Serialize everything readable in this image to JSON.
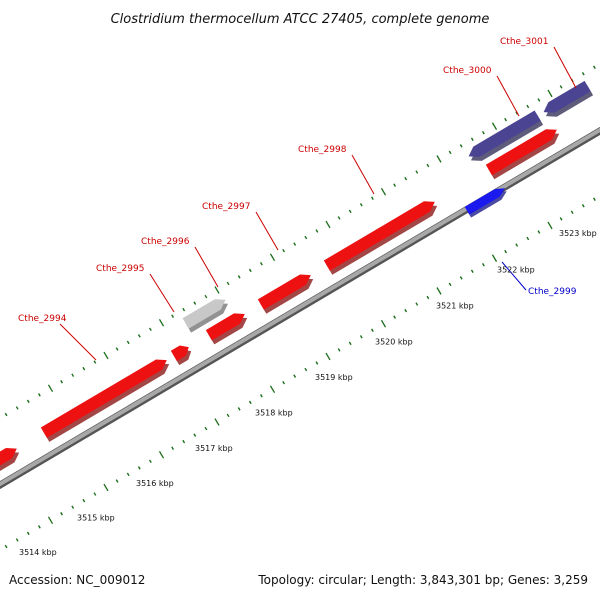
{
  "title": "Clostridium thermocellum ATCC 27405, complete genome",
  "footer": {
    "accession": "Accession: NC_009012",
    "summary": "Topology: circular; Length: 3,843,301 bp; Genes: 3,259"
  },
  "colors": {
    "background": "#ffffff",
    "forward_gene": "#ee1111",
    "reverse_gene": "#1a1aee",
    "other_gene": "#c8c8c8",
    "upper_gene": "#4a4492",
    "backbone": "#8c8c8c",
    "tick": "#1a6e1a",
    "forward_label": "#cc0000",
    "reverse_label": "#0000cc"
  },
  "kbp_labels": [
    "3514 kbp",
    "3515 kbp",
    "3516 kbp",
    "3517 kbp",
    "3518 kbp",
    "3519 kbp",
    "3520 kbp",
    "3521 kbp",
    "3522 kbp",
    "3523 kbp"
  ],
  "genes": [
    {
      "name": "Cthe_2994",
      "track": "forward",
      "labeled": true
    },
    {
      "name": "Cthe_2995",
      "track": "forward",
      "labeled": true
    },
    {
      "name": "Cthe_2996",
      "track": "other",
      "labeled": true
    },
    {
      "name": "Cthe_2997",
      "track": "forward",
      "labeled": true
    },
    {
      "name": "Cthe_2998",
      "track": "forward",
      "labeled": true
    },
    {
      "name": "Cthe_2999",
      "track": "reverse",
      "labeled": true
    },
    {
      "name": "Cthe_3000",
      "track": "forward",
      "labeled": true
    },
    {
      "name": "Cthe_3001",
      "track": "upper",
      "labeled": true
    }
  ]
}
